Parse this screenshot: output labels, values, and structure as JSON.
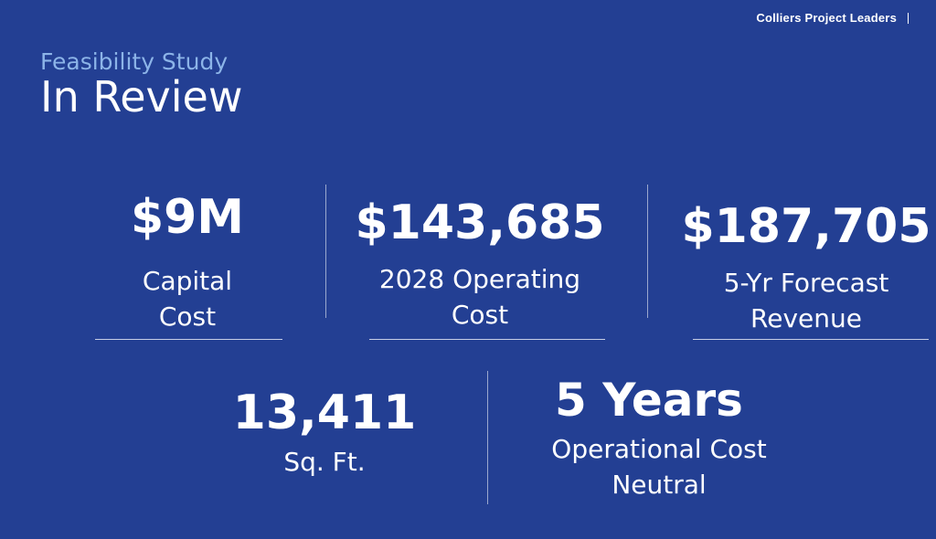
{
  "header": {
    "brand": "Colliers Project Leaders"
  },
  "heading": {
    "subtitle": "Feasibility Study",
    "title": "In Review"
  },
  "stats": [
    {
      "value": "$9M",
      "label_lines": [
        "Capital",
        "Cost"
      ]
    },
    {
      "value": "$143,685",
      "label_lines": [
        "2028 Operating",
        "Cost"
      ]
    },
    {
      "value": "$187,705",
      "label_lines": [
        "5-Yr Forecast",
        "Revenue"
      ]
    },
    {
      "value": "13,411",
      "label_lines": [
        "Sq. Ft."
      ]
    },
    {
      "value": "5 Years",
      "label_lines": [
        "Operational Cost",
        "Neutral"
      ]
    }
  ],
  "colors": {
    "background": "#233F93",
    "subtitle": "#8CB4E8",
    "text": "#FFFFFF"
  }
}
